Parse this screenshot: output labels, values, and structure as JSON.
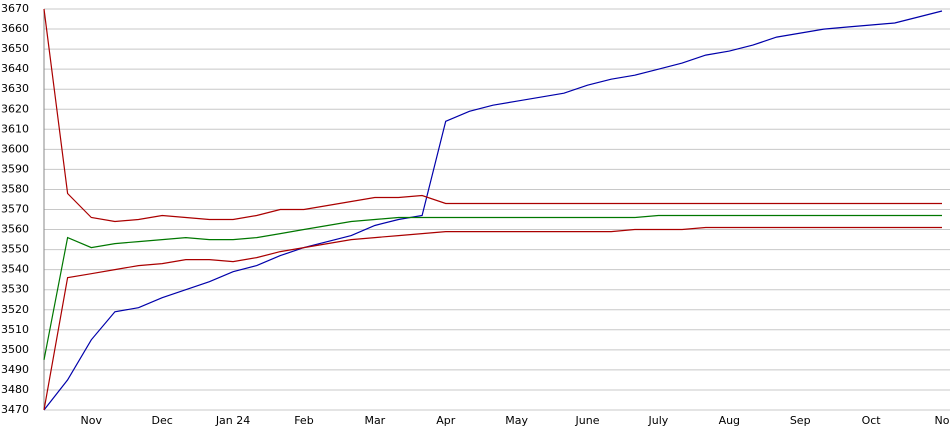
{
  "chart_data": {
    "type": "line",
    "categories": [
      null,
      null,
      "Nov",
      null,
      null,
      "Dec",
      null,
      null,
      "Jan 24",
      null,
      null,
      "Feb",
      null,
      null,
      "Mar",
      null,
      null,
      "Apr",
      null,
      null,
      "May",
      null,
      null,
      "June",
      null,
      null,
      "July",
      null,
      null,
      "Aug",
      null,
      null,
      "Sep",
      null,
      null,
      "Oct",
      null,
      null,
      "No"
    ],
    "series": [
      {
        "color": "#0000aa",
        "values": [
          3470,
          3485,
          3505,
          3519,
          3521,
          3526,
          3530,
          3534,
          3539,
          3542,
          3547,
          3551,
          3554,
          3557,
          3562,
          3565,
          3567,
          3614,
          3619,
          3622,
          3624,
          3626,
          3628,
          3632,
          3635,
          3637,
          3640,
          3643,
          3647,
          3649,
          3652,
          3656,
          3658,
          3660,
          3661,
          3662,
          3663,
          3666,
          3669
        ]
      },
      {
        "color": "#aa0000",
        "values": [
          3670,
          3578,
          3566,
          3564,
          3565,
          3567,
          3566,
          3565,
          3565,
          3567,
          3570,
          3570,
          3572,
          3574,
          3576,
          3576,
          3577,
          3573,
          3573,
          3573,
          3573,
          3573,
          3573,
          3573,
          3573,
          3573,
          3573,
          3573,
          3573,
          3573,
          3573,
          3573,
          3573,
          3573,
          3573,
          3573,
          3573,
          3573,
          3573
        ]
      },
      {
        "color": "#007700",
        "values": [
          3495,
          3556,
          3551,
          3553,
          3554,
          3555,
          3556,
          3555,
          3555,
          3556,
          3558,
          3560,
          3562,
          3564,
          3565,
          3566,
          3566,
          3566,
          3566,
          3566,
          3566,
          3566,
          3566,
          3566,
          3566,
          3566,
          3567,
          3567,
          3567,
          3567,
          3567,
          3567,
          3567,
          3567,
          3567,
          3567,
          3567,
          3567,
          3567
        ]
      },
      {
        "color": "#aa0000",
        "values": [
          3470,
          3536,
          3538,
          3540,
          3542,
          3543,
          3545,
          3545,
          3544,
          3546,
          3549,
          3551,
          3553,
          3555,
          3556,
          3557,
          3558,
          3559,
          3559,
          3559,
          3559,
          3559,
          3559,
          3559,
          3559,
          3560,
          3560,
          3560,
          3561,
          3561,
          3561,
          3561,
          3561,
          3561,
          3561,
          3561,
          3561,
          3561,
          3561
        ]
      }
    ],
    "ylim": [
      3470,
      3670
    ],
    "yticks": [
      3470,
      3480,
      3490,
      3500,
      3510,
      3520,
      3530,
      3540,
      3550,
      3560,
      3570,
      3580,
      3590,
      3600,
      3610,
      3620,
      3630,
      3640,
      3650,
      3660,
      3670
    ],
    "grid": true
  }
}
